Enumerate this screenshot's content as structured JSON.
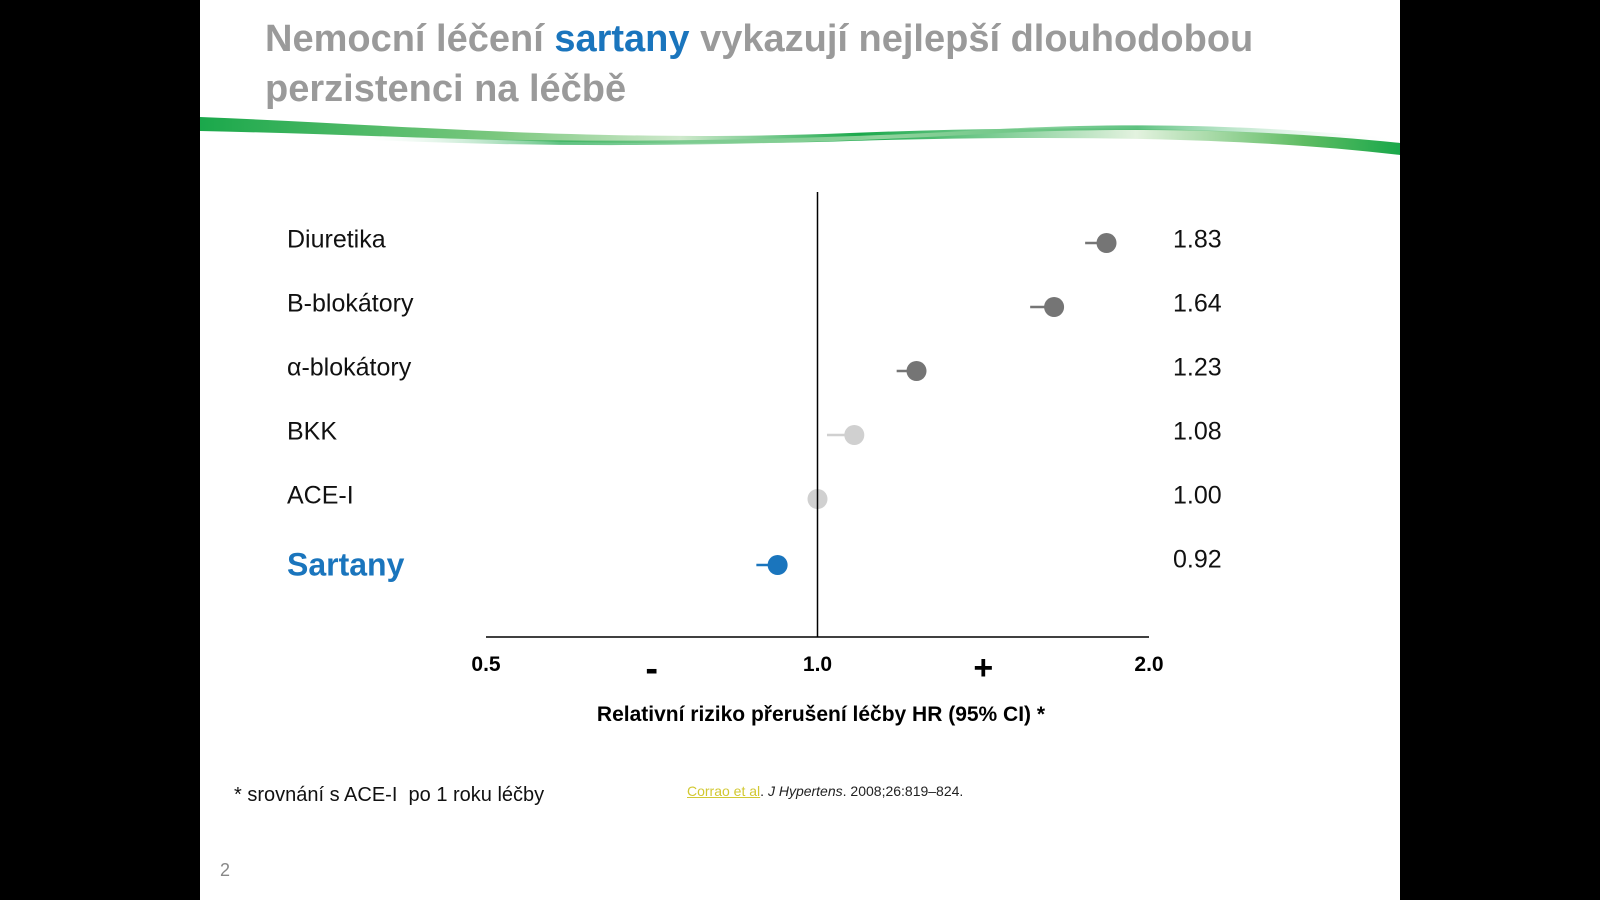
{
  "slide": {
    "title_before": "Nemocní léčení ",
    "title_highlight": "sartany",
    "title_after": " vykazují nejlepší dlouhodobou perzistenci na léčbě",
    "footnote": "* srovnání s ACE-I  po 1 roku léčby",
    "citation": {
      "link": "Corrao et al",
      "sep": ". ",
      "journal": "J Hypertens",
      "rest": ". 2008;26:819–824."
    },
    "page_number": "2"
  },
  "colors": {
    "title_gray": "#9a9a9a",
    "accent_blue": "#1a75bd",
    "dark_point": "#757575",
    "light_point": "#d0d0d0",
    "wave_green": "#1aa84b"
  },
  "chart_data": {
    "type": "scatter",
    "categories": [
      "Diuretika",
      "Β-blokátory",
      "α-blokátory",
      "BKK",
      "ACE-I",
      "Sartany"
    ],
    "values": [
      1.83,
      1.64,
      1.23,
      1.08,
      1.0,
      0.92
    ],
    "value_labels": [
      "1.83",
      "1.64",
      "1.23",
      "1.08",
      "1.00",
      "0.92"
    ],
    "ci_lower": [
      1.75,
      1.56,
      1.18,
      1.02,
      1.0,
      0.88
    ],
    "point_colors": [
      "#757575",
      "#757575",
      "#757575",
      "#d0d0d0",
      "#d0d0d0",
      "#1a75bd"
    ],
    "highlight_category": "Sartany",
    "xlim": [
      0.5,
      2.0
    ],
    "reference_line": 1.0,
    "xticks": [
      0.5,
      1.0,
      2.0
    ],
    "xtick_labels": [
      "0.5",
      "1.0",
      "2.0"
    ],
    "minus_sign": "-",
    "plus_sign": "+",
    "xlabel": "Relativní riziko přerušení léčby HR (95% CI) *"
  }
}
